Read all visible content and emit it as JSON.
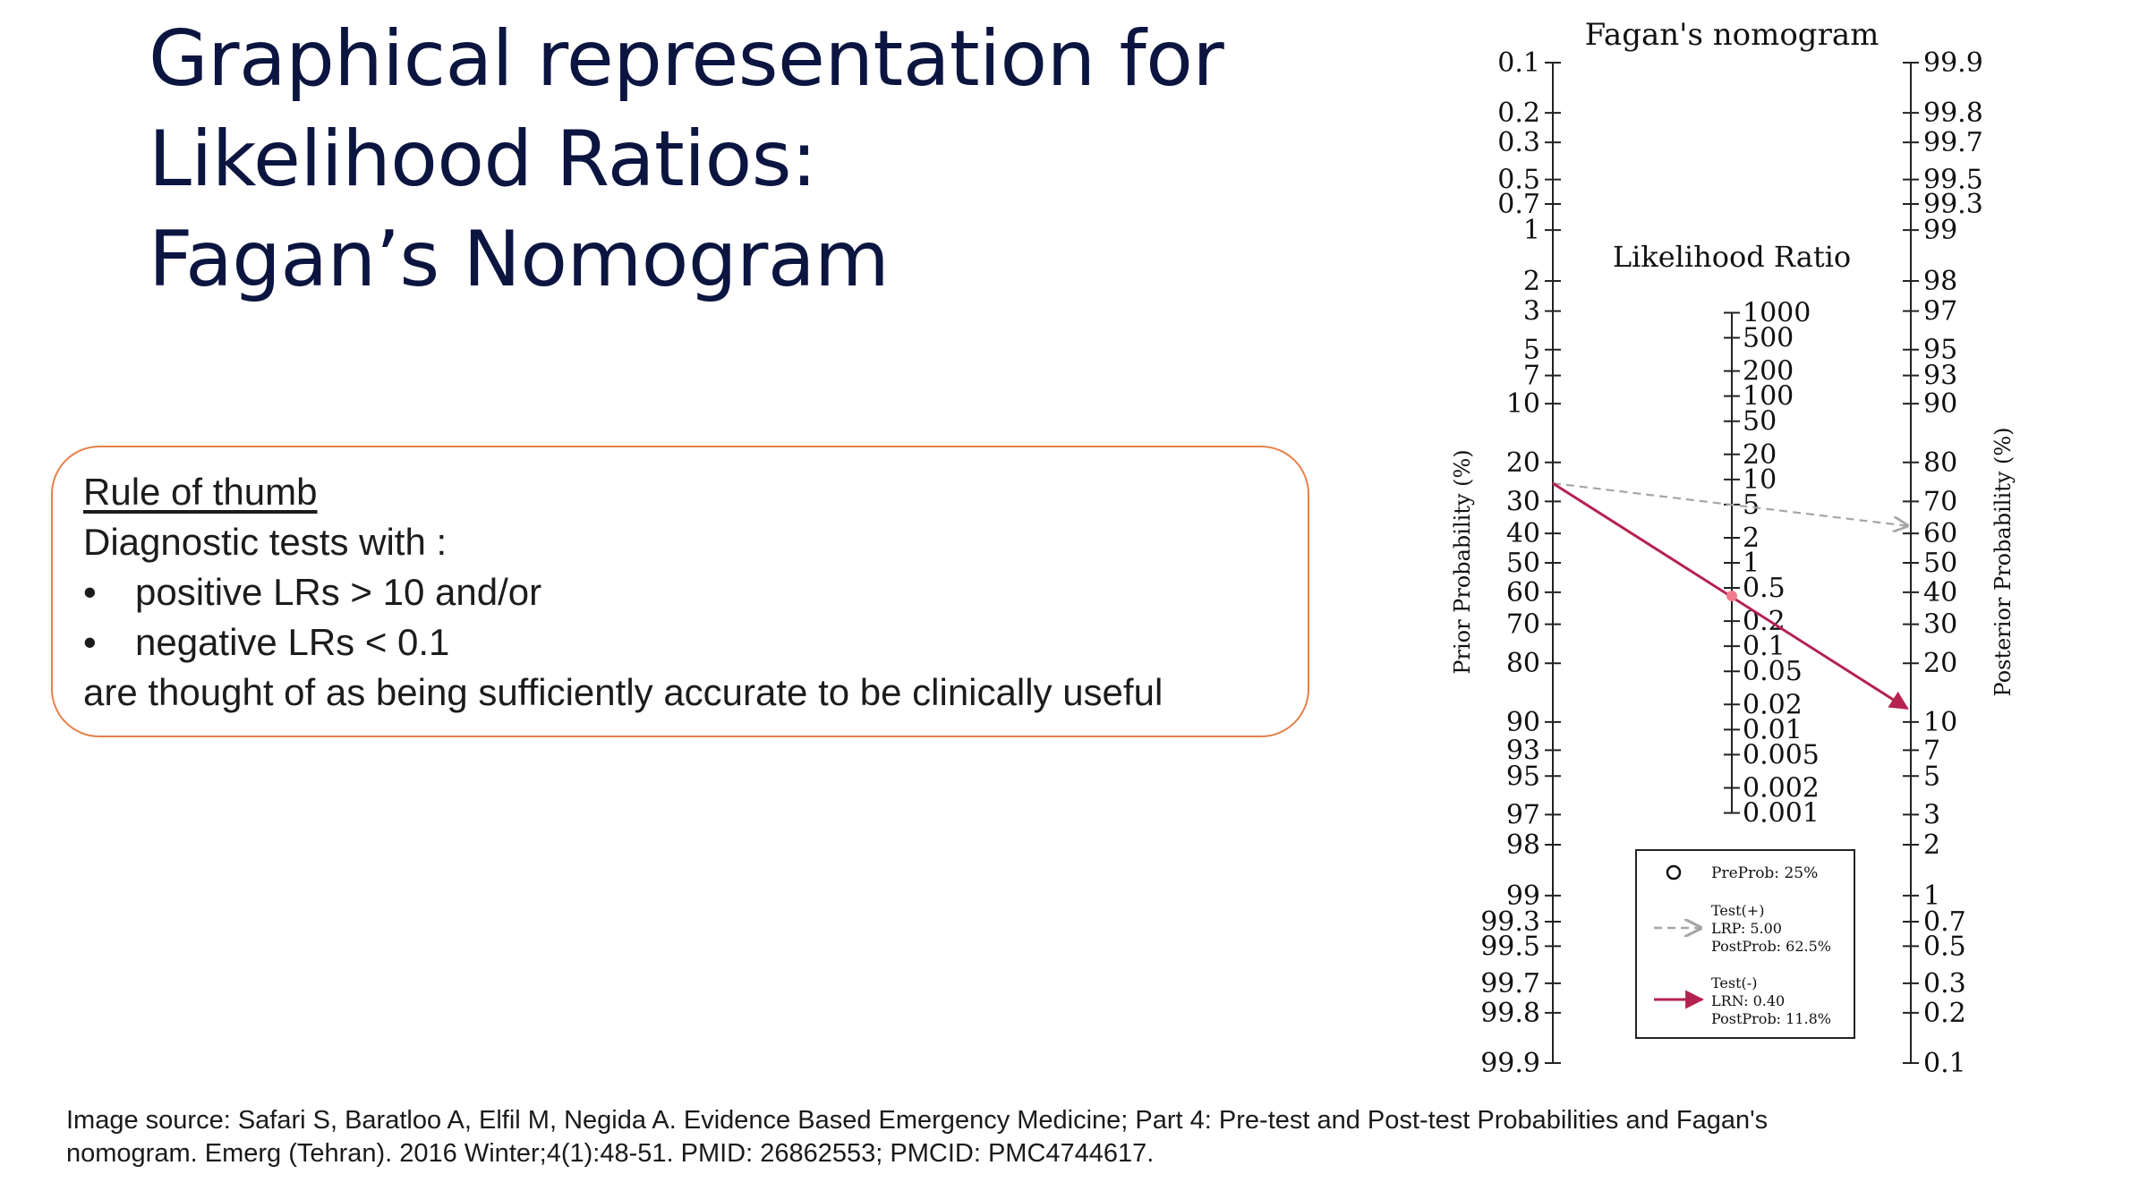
{
  "slide": {
    "title_lines": [
      "Graphical representation for",
      "Likelihood Ratios:",
      "Fagan’s Nomogram"
    ]
  },
  "rule_of_thumb": {
    "heading": "Rule of thumb",
    "intro": "Diagnostic tests with :",
    "bullet_char": "•",
    "bullets": [
      "positive LRs > 10 and/or",
      "negative LRs < 0.1"
    ],
    "conclusion": "are thought of as being sufficiently accurate to be clinically useful"
  },
  "source": {
    "line1": "Image source: Safari S, Baratloo A, Elfil M, Negida A. Evidence Based Emergency Medicine; Part 4: Pre-test and Post-test Probabilities and Fagan's",
    "line2": "nomogram. Emerg (Tehran). 2016 Winter;4(1):48-51. PMID: 26862553; PMCID: PMC4744617."
  },
  "chart_data": {
    "type": "nomogram",
    "title": "Fagan's nomogram",
    "left_axis": {
      "label": "Prior Probability (%)",
      "ticks": [
        "0.1",
        "0.2",
        "0.3",
        "0.5",
        "0.7",
        "1",
        "2",
        "3",
        "5",
        "7",
        "10",
        "20",
        "30",
        "40",
        "50",
        "60",
        "70",
        "80",
        "90",
        "93",
        "95",
        "97",
        "98",
        "99",
        "99.3",
        "99.5",
        "99.7",
        "99.8",
        "99.9"
      ]
    },
    "center_axis": {
      "label": "Likelihood Ratio",
      "ticks": [
        "1000",
        "500",
        "200",
        "100",
        "50",
        "20",
        "10",
        "5",
        "2",
        "1",
        "0.5",
        "0.2",
        "0.1",
        "0.05",
        "0.02",
        "0.01",
        "0.005",
        "0.002",
        "0.001"
      ]
    },
    "right_axis": {
      "label": "Posterior Probability (%)",
      "ticks": [
        "99.9",
        "99.8",
        "99.7",
        "99.5",
        "99.3",
        "99",
        "98",
        "97",
        "95",
        "93",
        "90",
        "80",
        "70",
        "60",
        "50",
        "40",
        "30",
        "20",
        "10",
        "7",
        "5",
        "3",
        "2",
        "1",
        "0.7",
        "0.5",
        "0.3",
        "0.2",
        "0.1"
      ]
    },
    "lines": [
      {
        "name": "Test(+)",
        "style": "dashed",
        "color": "#a6a6a6",
        "pre_prob": 25,
        "lr": 5.0,
        "post_prob": 62.5
      },
      {
        "name": "Test(-)",
        "style": "solid",
        "color": "#b5224f",
        "pre_prob": 25,
        "lr": 0.4,
        "post_prob": 11.8
      }
    ],
    "legend": {
      "placement": "bottom-right",
      "entries": [
        {
          "marker": "circle",
          "label": "PreProb: 25%"
        },
        {
          "marker": "dashed-arrow",
          "lines": [
            "Test(+)",
            "LRP: 5.00",
            "PostProb: 62.5%"
          ]
        },
        {
          "marker": "solid-arrow",
          "lines": [
            "Test(-)",
            "LRN: 0.40",
            "PostProb: 11.8%"
          ]
        }
      ]
    }
  }
}
